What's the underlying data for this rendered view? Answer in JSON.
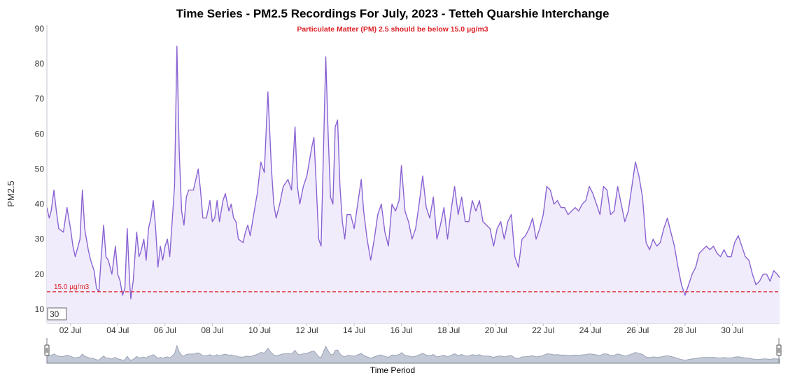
{
  "colors": {
    "line": "#8a63d2",
    "area": "#f1ecfc",
    "threshold": "#dc1f26",
    "navigator": "#9aa4b6",
    "navigator_fill": "#c3c9d6",
    "axis": "#c0c4cc"
  },
  "period_box": "30",
  "chart_data": {
    "type": "area",
    "title": "Time Series - PM2.5 Recordings For July, 2023 - Tetteh Quarshie Interchange",
    "subtitle": "Particulate Matter (PM) 2.5 should be below 15.0 µg/m3",
    "ylabel": "PM2.5",
    "xlabel": "Time Period",
    "ylim": [
      6,
      91
    ],
    "yticks": [
      10,
      20,
      30,
      40,
      50,
      60,
      70,
      80,
      90
    ],
    "xlim": [
      1.0,
      32.0
    ],
    "xticks": [
      {
        "day": 2,
        "label": "02 Jul"
      },
      {
        "day": 4,
        "label": "04 Jul"
      },
      {
        "day": 6,
        "label": "06 Jul"
      },
      {
        "day": 8,
        "label": "08 Jul"
      },
      {
        "day": 10,
        "label": "10 Jul"
      },
      {
        "day": 12,
        "label": "12 Jul"
      },
      {
        "day": 14,
        "label": "14 Jul"
      },
      {
        "day": 16,
        "label": "16 Jul"
      },
      {
        "day": 18,
        "label": "18 Jul"
      },
      {
        "day": 20,
        "label": "20 Jul"
      },
      {
        "day": 22,
        "label": "22 Jul"
      },
      {
        "day": 24,
        "label": "24 Jul"
      },
      {
        "day": 26,
        "label": "26 Jul"
      },
      {
        "day": 28,
        "label": "28 Jul"
      },
      {
        "day": 30,
        "label": "30 Jul"
      }
    ],
    "threshold": {
      "value": 15.0,
      "label": "15.0 µg/m3"
    },
    "series": [
      {
        "points": [
          [
            1.0,
            39
          ],
          [
            1.1,
            36
          ],
          [
            1.18,
            38
          ],
          [
            1.3,
            44
          ],
          [
            1.4,
            38
          ],
          [
            1.5,
            33
          ],
          [
            1.7,
            32
          ],
          [
            1.85,
            39
          ],
          [
            2.0,
            33
          ],
          [
            2.1,
            28
          ],
          [
            2.2,
            25
          ],
          [
            2.4,
            30
          ],
          [
            2.5,
            44
          ],
          [
            2.6,
            33
          ],
          [
            2.75,
            27
          ],
          [
            2.85,
            24
          ],
          [
            3.0,
            21
          ],
          [
            3.1,
            16
          ],
          [
            3.2,
            15
          ],
          [
            3.3,
            25
          ],
          [
            3.4,
            34
          ],
          [
            3.5,
            25
          ],
          [
            3.6,
            24
          ],
          [
            3.75,
            20
          ],
          [
            3.9,
            28
          ],
          [
            4.0,
            20
          ],
          [
            4.1,
            18
          ],
          [
            4.2,
            14
          ],
          [
            4.3,
            16
          ],
          [
            4.4,
            33
          ],
          [
            4.5,
            18
          ],
          [
            4.55,
            13
          ],
          [
            4.65,
            18
          ],
          [
            4.8,
            32
          ],
          [
            4.9,
            25
          ],
          [
            5.0,
            27
          ],
          [
            5.1,
            30
          ],
          [
            5.2,
            24
          ],
          [
            5.3,
            33
          ],
          [
            5.4,
            36
          ],
          [
            5.5,
            41
          ],
          [
            5.6,
            33
          ],
          [
            5.7,
            22
          ],
          [
            5.8,
            28
          ],
          [
            5.9,
            24
          ],
          [
            6.0,
            28
          ],
          [
            6.1,
            30
          ],
          [
            6.2,
            25
          ],
          [
            6.3,
            35
          ],
          [
            6.4,
            45
          ],
          [
            6.5,
            85
          ],
          [
            6.6,
            55
          ],
          [
            6.7,
            38
          ],
          [
            6.8,
            34
          ],
          [
            6.9,
            42
          ],
          [
            7.0,
            44
          ],
          [
            7.2,
            44
          ],
          [
            7.4,
            50
          ],
          [
            7.5,
            44
          ],
          [
            7.6,
            36
          ],
          [
            7.75,
            36
          ],
          [
            7.9,
            41
          ],
          [
            8.0,
            35
          ],
          [
            8.1,
            36
          ],
          [
            8.2,
            41
          ],
          [
            8.3,
            35
          ],
          [
            8.45,
            41
          ],
          [
            8.55,
            43
          ],
          [
            8.7,
            38
          ],
          [
            8.8,
            40
          ],
          [
            8.9,
            36
          ],
          [
            9.0,
            35
          ],
          [
            9.1,
            30
          ],
          [
            9.3,
            29
          ],
          [
            9.4,
            32
          ],
          [
            9.5,
            34
          ],
          [
            9.6,
            31
          ],
          [
            9.75,
            37
          ],
          [
            9.9,
            43
          ],
          [
            10.05,
            52
          ],
          [
            10.2,
            49
          ],
          [
            10.35,
            72
          ],
          [
            10.5,
            50
          ],
          [
            10.6,
            40
          ],
          [
            10.7,
            36
          ],
          [
            10.85,
            40
          ],
          [
            11.0,
            45
          ],
          [
            11.2,
            47
          ],
          [
            11.35,
            44
          ],
          [
            11.5,
            62
          ],
          [
            11.6,
            45
          ],
          [
            11.7,
            40
          ],
          [
            11.85,
            45
          ],
          [
            12.0,
            48
          ],
          [
            12.2,
            56
          ],
          [
            12.3,
            59
          ],
          [
            12.4,
            45
          ],
          [
            12.5,
            30
          ],
          [
            12.6,
            28
          ],
          [
            12.7,
            55
          ],
          [
            12.8,
            82
          ],
          [
            12.9,
            60
          ],
          [
            13.0,
            42
          ],
          [
            13.1,
            40
          ],
          [
            13.2,
            62
          ],
          [
            13.3,
            64
          ],
          [
            13.4,
            45
          ],
          [
            13.5,
            35
          ],
          [
            13.6,
            30
          ],
          [
            13.7,
            37
          ],
          [
            13.85,
            37
          ],
          [
            14.0,
            33
          ],
          [
            14.15,
            40
          ],
          [
            14.3,
            47
          ],
          [
            14.4,
            38
          ],
          [
            14.55,
            30
          ],
          [
            14.7,
            24
          ],
          [
            14.85,
            30
          ],
          [
            15.0,
            37
          ],
          [
            15.15,
            40
          ],
          [
            15.3,
            32
          ],
          [
            15.45,
            28
          ],
          [
            15.6,
            40
          ],
          [
            15.75,
            38
          ],
          [
            15.9,
            41
          ],
          [
            16.0,
            51
          ],
          [
            16.15,
            38
          ],
          [
            16.3,
            35
          ],
          [
            16.45,
            30
          ],
          [
            16.6,
            33
          ],
          [
            16.75,
            40
          ],
          [
            16.9,
            48
          ],
          [
            17.05,
            39
          ],
          [
            17.2,
            36
          ],
          [
            17.35,
            42
          ],
          [
            17.5,
            30
          ],
          [
            17.65,
            34
          ],
          [
            17.8,
            39
          ],
          [
            17.95,
            30
          ],
          [
            18.1,
            38
          ],
          [
            18.25,
            45
          ],
          [
            18.4,
            37
          ],
          [
            18.55,
            42
          ],
          [
            18.7,
            35
          ],
          [
            18.85,
            35
          ],
          [
            19.0,
            41
          ],
          [
            19.15,
            38
          ],
          [
            19.3,
            41
          ],
          [
            19.45,
            35
          ],
          [
            19.6,
            34
          ],
          [
            19.75,
            33
          ],
          [
            19.9,
            28
          ],
          [
            20.05,
            33
          ],
          [
            20.2,
            35
          ],
          [
            20.35,
            30
          ],
          [
            20.5,
            35
          ],
          [
            20.65,
            37
          ],
          [
            20.8,
            25
          ],
          [
            20.95,
            22
          ],
          [
            21.1,
            30
          ],
          [
            21.25,
            31
          ],
          [
            21.4,
            33
          ],
          [
            21.55,
            36
          ],
          [
            21.7,
            30
          ],
          [
            21.85,
            33
          ],
          [
            22.0,
            37
          ],
          [
            22.15,
            45
          ],
          [
            22.3,
            44
          ],
          [
            22.45,
            40
          ],
          [
            22.6,
            41
          ],
          [
            22.75,
            39
          ],
          [
            22.9,
            39
          ],
          [
            23.05,
            37
          ],
          [
            23.2,
            38
          ],
          [
            23.35,
            39
          ],
          [
            23.5,
            38
          ],
          [
            23.65,
            40
          ],
          [
            23.8,
            41
          ],
          [
            23.95,
            45
          ],
          [
            24.1,
            43
          ],
          [
            24.25,
            40
          ],
          [
            24.4,
            37
          ],
          [
            24.55,
            45
          ],
          [
            24.7,
            44
          ],
          [
            24.85,
            37
          ],
          [
            25.0,
            38
          ],
          [
            25.15,
            45
          ],
          [
            25.3,
            40
          ],
          [
            25.45,
            35
          ],
          [
            25.6,
            38
          ],
          [
            25.75,
            45
          ],
          [
            25.9,
            52
          ],
          [
            26.05,
            48
          ],
          [
            26.2,
            42
          ],
          [
            26.35,
            29
          ],
          [
            26.5,
            27
          ],
          [
            26.65,
            30
          ],
          [
            26.8,
            28
          ],
          [
            26.95,
            29
          ],
          [
            27.1,
            33
          ],
          [
            27.25,
            36
          ],
          [
            27.4,
            32
          ],
          [
            27.55,
            28
          ],
          [
            27.7,
            22
          ],
          [
            27.85,
            17
          ],
          [
            28.0,
            14
          ],
          [
            28.15,
            17
          ],
          [
            28.3,
            20
          ],
          [
            28.45,
            22
          ],
          [
            28.6,
            26
          ],
          [
            28.75,
            27
          ],
          [
            28.9,
            28
          ],
          [
            29.05,
            27
          ],
          [
            29.2,
            28
          ],
          [
            29.35,
            26
          ],
          [
            29.5,
            25
          ],
          [
            29.65,
            27
          ],
          [
            29.8,
            25
          ],
          [
            29.95,
            25
          ],
          [
            30.1,
            29
          ],
          [
            30.25,
            31
          ],
          [
            30.4,
            28
          ],
          [
            30.55,
            25
          ],
          [
            30.7,
            24
          ],
          [
            30.85,
            20
          ],
          [
            31.0,
            17
          ],
          [
            31.15,
            18
          ],
          [
            31.3,
            20
          ],
          [
            31.45,
            20
          ],
          [
            31.6,
            18
          ],
          [
            31.75,
            21
          ],
          [
            31.9,
            20
          ],
          [
            32.0,
            19
          ]
        ]
      }
    ]
  }
}
